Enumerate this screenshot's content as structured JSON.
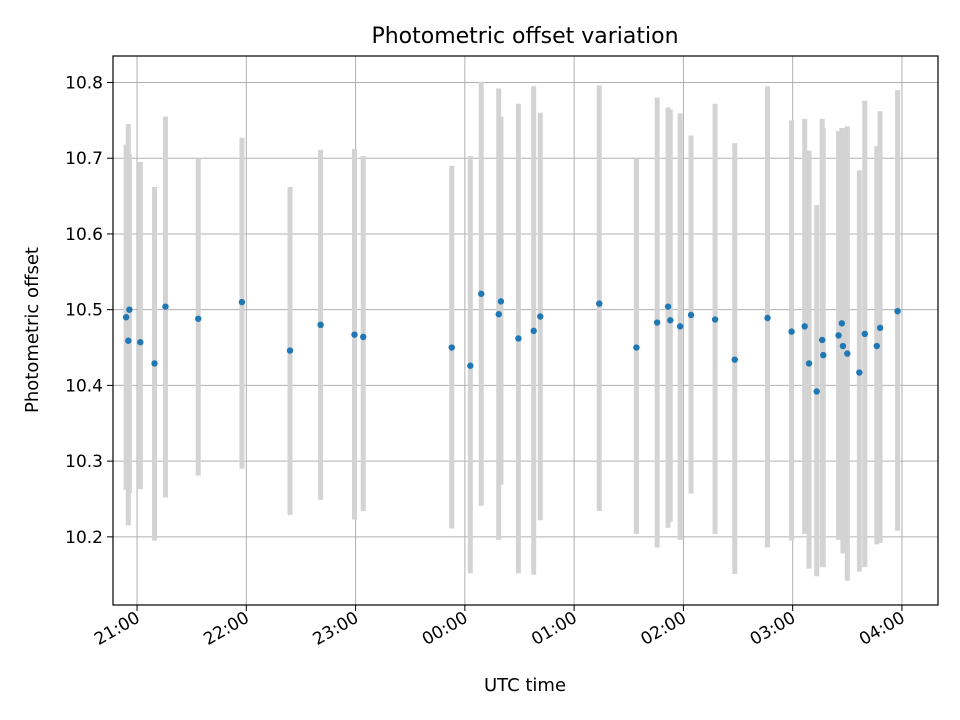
{
  "chart_data": {
    "type": "scatter",
    "title": "Photometric offset variation",
    "xlabel": "UTC time",
    "ylabel": "Photometric offset",
    "x_ticks": [
      "21:00",
      "22:00",
      "23:00",
      "00:00",
      "01:00",
      "02:00",
      "03:00",
      "04:00"
    ],
    "y_ticks": [
      "10.2",
      "10.3",
      "10.4",
      "10.5",
      "10.6",
      "10.7",
      "10.8"
    ],
    "xlim": [
      -3.22,
      4.33
    ],
    "ylim": [
      10.11,
      10.835
    ],
    "grid": true,
    "colors": {
      "point": "#1f77b4",
      "errorbar": "#d3d3d3",
      "grid": "#b0b0b0",
      "axes": "#000000"
    },
    "series": [
      {
        "points": [
          {
            "t": -3.1,
            "y": 10.49,
            "lo": 10.262,
            "hi": 10.718
          },
          {
            "t": -3.08,
            "y": 10.459,
            "lo": 10.215,
            "hi": 10.745
          },
          {
            "t": -3.07,
            "y": 10.5,
            "lo": 10.258,
            "hi": 10.705
          },
          {
            "t": -2.97,
            "y": 10.457,
            "lo": 10.263,
            "hi": 10.695
          },
          {
            "t": -2.84,
            "y": 10.429,
            "lo": 10.195,
            "hi": 10.662
          },
          {
            "t": -2.74,
            "y": 10.504,
            "lo": 10.252,
            "hi": 10.755
          },
          {
            "t": -2.44,
            "y": 10.488,
            "lo": 10.281,
            "hi": 10.7
          },
          {
            "t": -2.04,
            "y": 10.51,
            "lo": 10.29,
            "hi": 10.727
          },
          {
            "t": -1.6,
            "y": 10.446,
            "lo": 10.229,
            "hi": 10.662
          },
          {
            "t": -1.32,
            "y": 10.48,
            "lo": 10.249,
            "hi": 10.711
          },
          {
            "t": -1.01,
            "y": 10.467,
            "lo": 10.223,
            "hi": 10.712
          },
          {
            "t": -0.93,
            "y": 10.464,
            "lo": 10.234,
            "hi": 10.703
          },
          {
            "t": -0.12,
            "y": 10.45,
            "lo": 10.211,
            "hi": 10.69
          },
          {
            "t": 0.05,
            "y": 10.426,
            "lo": 10.152,
            "hi": 10.703
          },
          {
            "t": 0.15,
            "y": 10.521,
            "lo": 10.241,
            "hi": 10.801
          },
          {
            "t": 0.31,
            "y": 10.494,
            "lo": 10.196,
            "hi": 10.792
          },
          {
            "t": 0.33,
            "y": 10.511,
            "lo": 10.269,
            "hi": 10.755
          },
          {
            "t": 0.49,
            "y": 10.462,
            "lo": 10.152,
            "hi": 10.772
          },
          {
            "t": 0.63,
            "y": 10.472,
            "lo": 10.15,
            "hi": 10.795
          },
          {
            "t": 0.69,
            "y": 10.491,
            "lo": 10.222,
            "hi": 10.76
          },
          {
            "t": 1.23,
            "y": 10.508,
            "lo": 10.234,
            "hi": 10.796
          },
          {
            "t": 1.57,
            "y": 10.45,
            "lo": 10.204,
            "hi": 10.7
          },
          {
            "t": 1.76,
            "y": 10.483,
            "lo": 10.186,
            "hi": 10.78
          },
          {
            "t": 1.86,
            "y": 10.504,
            "lo": 10.212,
            "hi": 10.767
          },
          {
            "t": 1.88,
            "y": 10.486,
            "lo": 10.22,
            "hi": 10.764
          },
          {
            "t": 1.97,
            "y": 10.478,
            "lo": 10.196,
            "hi": 10.759
          },
          {
            "t": 2.07,
            "y": 10.493,
            "lo": 10.257,
            "hi": 10.73
          },
          {
            "t": 2.29,
            "y": 10.487,
            "lo": 10.204,
            "hi": 10.772
          },
          {
            "t": 2.47,
            "y": 10.434,
            "lo": 10.151,
            "hi": 10.72
          },
          {
            "t": 2.77,
            "y": 10.489,
            "lo": 10.186,
            "hi": 10.795
          },
          {
            "t": 2.99,
            "y": 10.471,
            "lo": 10.195,
            "hi": 10.75
          },
          {
            "t": 3.11,
            "y": 10.478,
            "lo": 10.204,
            "hi": 10.752
          },
          {
            "t": 3.15,
            "y": 10.429,
            "lo": 10.158,
            "hi": 10.71
          },
          {
            "t": 3.22,
            "y": 10.392,
            "lo": 10.148,
            "hi": 10.638
          },
          {
            "t": 3.27,
            "y": 10.46,
            "lo": 10.16,
            "hi": 10.752
          },
          {
            "t": 3.28,
            "y": 10.44,
            "lo": 10.16,
            "hi": 10.74
          },
          {
            "t": 3.42,
            "y": 10.466,
            "lo": 10.196,
            "hi": 10.736
          },
          {
            "t": 3.45,
            "y": 10.482,
            "lo": 10.225,
            "hi": 10.74
          },
          {
            "t": 3.46,
            "y": 10.452,
            "lo": 10.178,
            "hi": 10.739
          },
          {
            "t": 3.5,
            "y": 10.442,
            "lo": 10.142,
            "hi": 10.742
          },
          {
            "t": 3.61,
            "y": 10.417,
            "lo": 10.154,
            "hi": 10.684
          },
          {
            "t": 3.66,
            "y": 10.468,
            "lo": 10.16,
            "hi": 10.776
          },
          {
            "t": 3.77,
            "y": 10.452,
            "lo": 10.19,
            "hi": 10.716
          },
          {
            "t": 3.8,
            "y": 10.476,
            "lo": 10.192,
            "hi": 10.762
          },
          {
            "t": 3.96,
            "y": 10.498,
            "lo": 10.208,
            "hi": 10.79
          }
        ]
      }
    ]
  }
}
